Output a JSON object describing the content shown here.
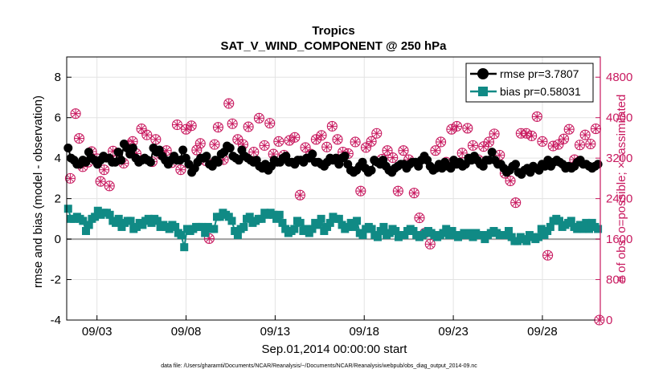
{
  "chart_data": {
    "type": "line",
    "title": "Tropics",
    "subtitle": "SAT_V_WIND_COMPONENT @ 250 hPa",
    "xlabel": "Sep.01,2014 00:00:00 start",
    "ylabel": "rmse and bias (model - observation)",
    "y2label": "# of obs: o=possible; ×=assimilated",
    "footnote": "data file: /Users/gharamti/Documents/NCAR/Reanalysis/~/Documents/NCAR/Reanalysis/webpub/obs_diag_output_2014-09.nc",
    "x_unit": "days since Sep 01 2014",
    "xlim": [
      1.3,
      31.25
    ],
    "ylim": [
      -4,
      9
    ],
    "y2lim": [
      0,
      5200
    ],
    "xticks": [
      3,
      8,
      13,
      18,
      23,
      28
    ],
    "xtick_labels": [
      "09/03",
      "09/08",
      "09/13",
      "09/18",
      "09/23",
      "09/28"
    ],
    "yticks": [
      -4,
      -2,
      0,
      2,
      4,
      6,
      8
    ],
    "ytick_labels": [
      "-4",
      "-2",
      "0",
      "2",
      "4",
      "6",
      "8"
    ],
    "y2ticks": [
      0,
      800,
      1600,
      2400,
      3200,
      4000,
      4800
    ],
    "y2tick_labels": [
      "0",
      "800",
      "1600",
      "2400",
      "3200",
      "4000",
      "4800"
    ],
    "zero_line": 0,
    "grid": true,
    "legend_position": "top-right",
    "colors": {
      "rmse": "#000000",
      "bias": "#108a85",
      "obs": "#c8195f",
      "zero": "#a0a0a0",
      "axis": "#000000"
    },
    "series": [
      {
        "name": "rmse",
        "label": "rmse pr=3.7807",
        "axis": "left",
        "marker": "circle",
        "values": [
          4.5,
          4.0,
          3.9,
          3.7,
          3.7,
          3.9,
          3.8,
          4.3,
          4.0,
          3.9,
          3.7,
          3.9,
          4.1,
          4.0,
          4.0,
          3.8,
          3.8,
          4.3,
          3.9,
          4.7,
          4.5,
          4.2,
          4.5,
          4.0,
          3.8,
          3.9,
          4.0,
          3.9,
          3.8,
          4.5,
          4.3,
          4.4,
          4.1,
          3.9,
          3.7,
          3.9,
          4.1,
          3.9,
          3.9,
          4.4,
          4.0,
          3.7,
          3.3,
          3.5,
          3.8,
          4.0,
          4.0,
          4.1,
          3.7,
          3.6,
          3.9,
          3.8,
          4.2,
          4.3,
          4.6,
          4.5,
          4.1,
          4.0,
          3.9,
          4.4,
          4.1,
          4.0,
          3.9,
          3.8,
          3.9,
          3.6,
          3.5,
          3.7,
          3.4,
          3.6,
          3.9,
          3.8,
          3.8,
          4.0,
          4.1,
          3.8,
          3.8,
          3.7,
          3.9,
          3.9,
          3.8,
          4.0,
          4.0,
          4.2,
          3.8,
          3.8,
          3.7,
          3.6,
          3.8,
          4.0,
          3.9,
          4.0,
          3.7,
          4.0,
          4.1,
          3.7,
          3.4,
          3.3,
          3.4,
          3.6,
          3.8,
          3.5,
          3.3,
          3.4,
          3.9,
          3.8,
          3.7,
          3.9,
          3.6,
          3.4,
          3.3,
          3.5,
          3.6,
          3.7,
          3.7,
          3.5,
          3.7,
          3.8,
          3.8,
          3.6,
          3.9,
          4.1,
          3.9,
          3.6,
          3.4,
          3.5,
          3.7,
          3.5,
          3.8,
          3.6,
          3.5,
          3.9,
          3.7,
          3.8,
          3.6,
          3.7,
          4.0,
          3.9,
          4.1,
          3.9,
          3.7,
          3.6,
          3.9,
          3.9,
          4.3,
          3.9,
          3.7,
          3.7,
          3.5,
          3.3,
          3.4,
          3.6,
          3.7,
          3.3,
          3.2,
          3.4,
          3.5,
          3.3,
          3.6,
          3.5,
          3.4,
          3.7,
          3.6,
          3.9,
          3.6,
          3.8,
          3.9,
          3.8,
          3.7,
          3.5,
          3.6,
          3.5,
          3.6,
          3.8,
          3.9,
          3.7,
          3.7,
          3.6,
          3.5,
          3.6,
          3.7
        ]
      },
      {
        "name": "bias",
        "label": "bias pr=0.58031",
        "axis": "left",
        "marker": "square",
        "values": [
          1.5,
          1.0,
          1.0,
          1.1,
          1.0,
          0.9,
          0.4,
          0.7,
          1.0,
          1.1,
          1.4,
          1.2,
          1.3,
          1.3,
          1.2,
          0.9,
          0.8,
          1.0,
          0.6,
          0.8,
          0.9,
          0.9,
          0.5,
          0.6,
          0.8,
          0.7,
          0.9,
          1.0,
          0.8,
          1.0,
          0.9,
          0.6,
          0.7,
          0.6,
          0.5,
          0.7,
          0.6,
          0.3,
          0.2,
          -0.4,
          0.5,
          0.4,
          0.5,
          0.6,
          0.6,
          0.6,
          0.3,
          0.6,
          0.5,
          0.5,
          1.1,
          1.1,
          1.3,
          1.2,
          1.1,
          0.9,
          0.4,
          0.2,
          0.5,
          0.6,
          1.0,
          1.1,
          0.8,
          0.9,
          1.0,
          1.0,
          1.3,
          1.2,
          1.3,
          1.2,
          1.0,
          1.2,
          0.8,
          0.5,
          0.3,
          0.4,
          0.5,
          0.9,
          0.8,
          0.4,
          0.5,
          0.3,
          0.5,
          0.8,
          0.7,
          1.0,
          0.4,
          0.6,
          0.8,
          1.1,
          1.0,
          1.0,
          0.7,
          0.5,
          0.6,
          0.8,
          0.6,
          0.9,
          0.3,
          0.2,
          0.5,
          0.6,
          0.5,
          0.2,
          0.1,
          0.4,
          0.6,
          0.2,
          0.3,
          0.5,
          0.4,
          0.1,
          0.2,
          0.2,
          0.4,
          0.5,
          0.4,
          0.2,
          0.1,
          0.2,
          0.3,
          0.4,
          0.3,
          0.2,
          0.1,
          0.2,
          0.3,
          0.5,
          0.2,
          0.4,
          0.2,
          0.1,
          0.2,
          0.3,
          0.2,
          0.3,
          0.1,
          0.3,
          0.2,
          0.2,
          0.0,
          0.2,
          0.3,
          0.4,
          0.3,
          0.2,
          0.2,
          0.2,
          0.4,
          0.1,
          -0.1,
          -0.1,
          0.1,
          0.0,
          -0.1,
          0.2,
          0.1,
          0.0,
          0.1,
          0.5,
          0.2,
          0.4,
          0.6,
          0.9,
          1.0,
          0.9,
          0.6,
          0.7,
          0.8,
          0.9,
          0.6,
          0.5,
          0.7,
          0.5,
          0.8,
          0.5,
          0.8,
          0.6,
          0.5
        ]
      },
      {
        "name": "obs",
        "label": "# of obs",
        "axis": "right",
        "marker": "circle-x",
        "points": [
          [
            1.5,
            2800
          ],
          [
            1.8,
            4080
          ],
          [
            2.0,
            3590
          ],
          [
            2.2,
            3030
          ],
          [
            2.5,
            3120
          ],
          [
            2.7,
            3330
          ],
          [
            3.0,
            3190
          ],
          [
            3.2,
            2740
          ],
          [
            3.4,
            2970
          ],
          [
            3.7,
            2650
          ],
          [
            3.9,
            3340
          ],
          [
            4.2,
            3190
          ],
          [
            4.5,
            3100
          ],
          [
            4.8,
            3460
          ],
          [
            5.0,
            3530
          ],
          [
            5.2,
            3290
          ],
          [
            5.5,
            3780
          ],
          [
            5.8,
            3660
          ],
          [
            6.1,
            3130
          ],
          [
            6.3,
            3570
          ],
          [
            6.6,
            3270
          ],
          [
            6.9,
            3350
          ],
          [
            7.2,
            3110
          ],
          [
            7.5,
            3860
          ],
          [
            7.7,
            2970
          ],
          [
            8.0,
            3770
          ],
          [
            8.3,
            3840
          ],
          [
            8.6,
            3360
          ],
          [
            8.8,
            3490
          ],
          [
            9.1,
            3150
          ],
          [
            9.3,
            1610
          ],
          [
            9.6,
            3470
          ],
          [
            9.8,
            3810
          ],
          [
            10.1,
            3170
          ],
          [
            10.4,
            4280
          ],
          [
            10.6,
            3880
          ],
          [
            10.9,
            3570
          ],
          [
            11.2,
            3470
          ],
          [
            11.5,
            3820
          ],
          [
            11.8,
            3320
          ],
          [
            12.1,
            3990
          ],
          [
            12.4,
            3450
          ],
          [
            12.7,
            3890
          ],
          [
            12.9,
            3280
          ],
          [
            13.2,
            3530
          ],
          [
            13.5,
            3260
          ],
          [
            13.8,
            3550
          ],
          [
            14.1,
            3610
          ],
          [
            14.4,
            2470
          ],
          [
            14.7,
            3410
          ],
          [
            15.0,
            3280
          ],
          [
            15.3,
            3570
          ],
          [
            15.6,
            3650
          ],
          [
            15.9,
            3420
          ],
          [
            16.2,
            3830
          ],
          [
            16.5,
            3570
          ],
          [
            16.8,
            3320
          ],
          [
            17.1,
            3290
          ],
          [
            17.5,
            3520
          ],
          [
            17.8,
            2550
          ],
          [
            18.1,
            3410
          ],
          [
            18.4,
            3530
          ],
          [
            18.7,
            3690
          ],
          [
            19.0,
            3180
          ],
          [
            19.3,
            3350
          ],
          [
            19.6,
            3210
          ],
          [
            19.9,
            2550
          ],
          [
            20.2,
            3350
          ],
          [
            20.5,
            3170
          ],
          [
            20.8,
            2510
          ],
          [
            21.1,
            2020
          ],
          [
            21.4,
            1720
          ],
          [
            21.7,
            1500
          ],
          [
            22.0,
            3350
          ],
          [
            22.3,
            3520
          ],
          [
            22.6,
            3120
          ],
          [
            22.9,
            3770
          ],
          [
            23.2,
            3830
          ],
          [
            23.5,
            3300
          ],
          [
            23.8,
            3790
          ],
          [
            24.1,
            3450
          ],
          [
            24.4,
            3170
          ],
          [
            24.7,
            3430
          ],
          [
            25.0,
            3520
          ],
          [
            25.3,
            3680
          ],
          [
            25.6,
            3260
          ],
          [
            25.9,
            2900
          ],
          [
            26.2,
            2750
          ],
          [
            26.5,
            2320
          ],
          [
            26.8,
            3690
          ],
          [
            27.1,
            3690
          ],
          [
            27.4,
            3640
          ],
          [
            27.7,
            4020
          ],
          [
            28.0,
            3530
          ],
          [
            28.3,
            1280
          ],
          [
            28.6,
            3440
          ],
          [
            28.9,
            3470
          ],
          [
            29.2,
            3580
          ],
          [
            29.5,
            3770
          ],
          [
            29.8,
            3170
          ],
          [
            30.1,
            3460
          ],
          [
            30.4,
            3660
          ],
          [
            30.7,
            3480
          ],
          [
            31.0,
            3780
          ],
          [
            31.2,
            0
          ]
        ]
      }
    ]
  }
}
